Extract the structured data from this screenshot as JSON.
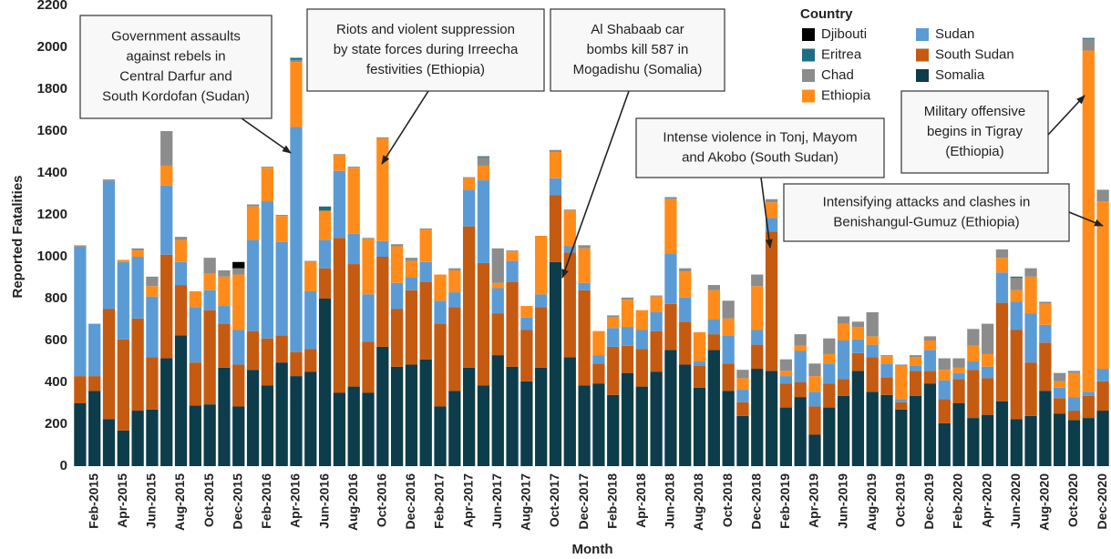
{
  "chart_data": {
    "type": "stacked_bar",
    "x_label": "Month",
    "y_label": "Reported Fatalities",
    "legend_title": "Country",
    "ylim": [
      0,
      2200
    ],
    "yticks": [
      0,
      200,
      400,
      600,
      800,
      1000,
      1200,
      1400,
      1600,
      1800,
      2000,
      2200
    ],
    "categories": [
      null,
      "Feb-2015",
      null,
      "Apr-2015",
      null,
      "Jun-2015",
      null,
      "Aug-2015",
      null,
      "Oct-2015",
      null,
      "Dec-2015",
      null,
      "Feb-2016",
      null,
      "Apr-2016",
      null,
      "Jun-2016",
      null,
      "Aug-2016",
      null,
      "Oct-2016",
      null,
      "Dec-2016",
      null,
      "Feb-2017",
      null,
      "Apr-2017",
      null,
      "Jun-2017",
      null,
      "Aug-2017",
      null,
      "Oct-2017",
      null,
      "Dec-2017",
      null,
      "Feb-2018",
      null,
      "Apr-2018",
      null,
      "Jun-2018",
      null,
      "Aug-2018",
      null,
      "Oct-2018",
      null,
      "Dec-2018",
      null,
      "Feb-2019",
      null,
      "Apr-2019",
      null,
      "Jun-2019",
      null,
      "Aug-2019",
      null,
      "Oct-2019",
      null,
      "Dec-2019",
      null,
      "Feb-2020",
      null,
      "Apr-2020",
      null,
      "Jun-2020",
      null,
      "Aug-2020",
      null,
      "Oct-2020",
      null,
      "Dec-2020"
    ],
    "series": [
      {
        "name": "Djibouti",
        "color": "#000000",
        "values": [
          0,
          0,
          0,
          0,
          0,
          0,
          0,
          0,
          0,
          0,
          0,
          30,
          0,
          0,
          0,
          0,
          0,
          0,
          0,
          0,
          0,
          0,
          0,
          0,
          0,
          0,
          0,
          0,
          0,
          0,
          0,
          0,
          0,
          0,
          0,
          0,
          0,
          0,
          0,
          0,
          0,
          0,
          0,
          0,
          0,
          0,
          0,
          0,
          0,
          0,
          0,
          0,
          0,
          0,
          0,
          0,
          0,
          0,
          0,
          0,
          0,
          0,
          0,
          0,
          0,
          0,
          0,
          0,
          0,
          0,
          0,
          0
        ]
      },
      {
        "name": "Eritrea",
        "color": "#1c6f84",
        "values": [
          0,
          0,
          0,
          0,
          0,
          0,
          0,
          0,
          0,
          0,
          0,
          0,
          0,
          0,
          0,
          10,
          0,
          20,
          0,
          0,
          0,
          0,
          0,
          0,
          0,
          0,
          0,
          0,
          5,
          0,
          0,
          0,
          0,
          0,
          0,
          0,
          0,
          0,
          0,
          0,
          0,
          0,
          0,
          0,
          0,
          0,
          0,
          0,
          0,
          0,
          0,
          0,
          0,
          0,
          0,
          0,
          0,
          0,
          0,
          0,
          0,
          0,
          0,
          0,
          0,
          5,
          0,
          0,
          0,
          0,
          5,
          0
        ]
      },
      {
        "name": "Chad",
        "color": "#8c8c8c",
        "values": [
          0,
          0,
          0,
          0,
          10,
          45,
          165,
          15,
          0,
          75,
          30,
          30,
          10,
          5,
          5,
          10,
          5,
          0,
          5,
          5,
          5,
          5,
          10,
          15,
          5,
          0,
          10,
          5,
          40,
          165,
          5,
          0,
          0,
          10,
          5,
          15,
          0,
          10,
          10,
          0,
          5,
          10,
          15,
          0,
          25,
          85,
          40,
          55,
          15,
          55,
          55,
          60,
          75,
          35,
          25,
          115,
          5,
          5,
          10,
          20,
          55,
          45,
          80,
          145,
          40,
          60,
          40,
          10,
          40,
          10,
          55,
          55
        ]
      },
      {
        "name": "Ethiopia",
        "color": "#ff8c1a",
        "values": [
          5,
          0,
          5,
          10,
          30,
          50,
          95,
          105,
          75,
          80,
          140,
          265,
          160,
          160,
          125,
          310,
          140,
          140,
          75,
          315,
          265,
          490,
          175,
          80,
          155,
          125,
          105,
          55,
          70,
          25,
          45,
          55,
          280,
          125,
          170,
          165,
          115,
          50,
          130,
          95,
          75,
          260,
          125,
          140,
          140,
          80,
          55,
          210,
          75,
          25,
          25,
          75,
          45,
          80,
          60,
          40,
          35,
          160,
          40,
          45,
          50,
          25,
          75,
          60,
          70,
          55,
          175,
          100,
          30,
          115,
          1630,
          800
        ]
      },
      {
        "name": "Sudan",
        "color": "#5b9bd5",
        "values": [
          620,
          250,
          615,
          370,
          295,
          290,
          330,
          110,
          265,
          95,
          85,
          165,
          435,
          655,
          445,
          1075,
          275,
          135,
          320,
          145,
          225,
          75,
          125,
          60,
          95,
          110,
          70,
          175,
          395,
          120,
          100,
          60,
          60,
          80,
          30,
          35,
          40,
          90,
          90,
          90,
          90,
          240,
          115,
          20,
          70,
          135,
          60,
          70,
          65,
          35,
          150,
          70,
          95,
          185,
          65,
          60,
          65,
          15,
          25,
          100,
          90,
          30,
          40,
          55,
          145,
          135,
          235,
          85,
          50,
          65,
          20,
          60
        ]
      },
      {
        "name": "South Sudan",
        "color": "#c55a11",
        "values": [
          130,
          70,
          525,
          435,
          440,
          250,
          495,
          240,
          205,
          450,
          210,
          200,
          185,
          225,
          130,
          115,
          110,
          145,
          740,
          585,
          245,
          430,
          275,
          355,
          370,
          395,
          400,
          675,
          585,
          200,
          405,
          245,
          290,
          320,
          500,
          455,
          95,
          230,
          130,
          180,
          195,
          220,
          205,
          105,
          75,
          130,
          65,
          115,
          665,
          115,
          70,
          135,
          115,
          80,
          85,
          165,
          85,
          35,
          120,
          60,
          115,
          115,
          230,
          175,
          470,
          425,
          255,
          230,
          75,
          45,
          105,
          140
        ]
      },
      {
        "name": "Somalia",
        "color": "#0d3c4b",
        "values": [
          300,
          360,
          225,
          170,
          265,
          270,
          515,
          625,
          290,
          295,
          470,
          285,
          460,
          385,
          495,
          430,
          450,
          800,
          350,
          380,
          350,
          570,
          475,
          485,
          510,
          285,
          360,
          470,
          385,
          530,
          475,
          405,
          470,
          975,
          520,
          385,
          395,
          340,
          445,
          380,
          450,
          555,
          485,
          375,
          555,
          360,
          240,
          465,
          455,
          280,
          330,
          150,
          280,
          335,
          455,
          355,
          340,
          270,
          335,
          395,
          205,
          300,
          230,
          245,
          310,
          225,
          240,
          360,
          250,
          220,
          230,
          265
        ]
      }
    ],
    "annotations": [
      {
        "lines": [
          "Government assaults",
          "against rebels in",
          "Central Darfur and",
          "South Kordofan (Sudan)"
        ]
      },
      {
        "lines": [
          "Riots and violent suppression",
          "by state forces during Irreecha",
          "festivities (Ethiopia)"
        ]
      },
      {
        "lines": [
          "Al Shabaab car",
          "bombs kill 587 in",
          "Mogadishu (Somalia)"
        ]
      },
      {
        "lines": [
          "Intense violence in Tonj, Mayom",
          "and Akobo (South Sudan)"
        ]
      },
      {
        "lines": [
          "Military offensive",
          "begins in Tigray",
          "(Ethiopia)"
        ]
      },
      {
        "lines": [
          "Intensifying attacks and clashes in",
          "Benishangul-Gumuz (Ethiopia)"
        ]
      }
    ]
  }
}
